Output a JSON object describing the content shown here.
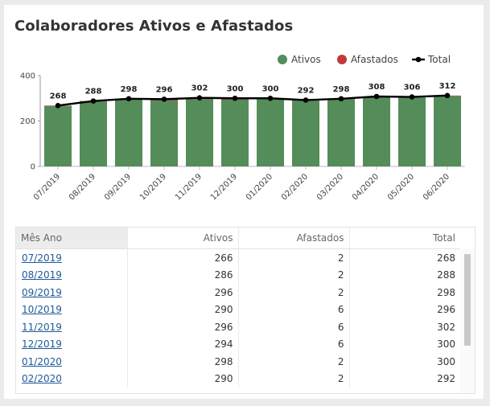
{
  "title": "Colaboradores Ativos e Afastados",
  "colors": {
    "ativos": "#548c5a",
    "afastados": "#c0393b",
    "total": "#000000"
  },
  "legend": {
    "ativos": "Ativos",
    "afastados": "Afastados",
    "total": "Total"
  },
  "chart_data": {
    "type": "bar",
    "title": "Colaboradores Ativos e Afastados",
    "stacked": true,
    "categories": [
      "07/2019",
      "08/2019",
      "09/2019",
      "10/2019",
      "11/2019",
      "12/2019",
      "01/2020",
      "02/2020",
      "03/2020",
      "04/2020",
      "05/2020",
      "06/2020"
    ],
    "series": [
      {
        "name": "Ativos",
        "values": [
          266,
          286,
          296,
          290,
          296,
          294,
          298,
          290,
          296,
          306,
          304,
          310
        ]
      },
      {
        "name": "Afastados",
        "values": [
          2,
          2,
          2,
          6,
          6,
          6,
          2,
          2,
          2,
          2,
          2,
          2
        ]
      }
    ],
    "line_series": {
      "name": "Total",
      "values": [
        268,
        288,
        298,
        296,
        302,
        300,
        300,
        292,
        298,
        308,
        306,
        312
      ]
    },
    "yticks": [
      0,
      200,
      400
    ],
    "ylim": [
      0,
      400
    ],
    "legend_position": "top-right"
  },
  "table": {
    "headers": [
      "Mês Ano",
      "Ativos",
      "Afastados",
      "Total"
    ],
    "rows": [
      [
        "07/2019",
        "266",
        "2",
        "268"
      ],
      [
        "08/2019",
        "286",
        "2",
        "288"
      ],
      [
        "09/2019",
        "296",
        "2",
        "298"
      ],
      [
        "10/2019",
        "290",
        "6",
        "296"
      ],
      [
        "11/2019",
        "296",
        "6",
        "302"
      ],
      [
        "12/2019",
        "294",
        "6",
        "300"
      ],
      [
        "01/2020",
        "298",
        "2",
        "300"
      ],
      [
        "02/2020",
        "290",
        "2",
        "292"
      ]
    ]
  }
}
